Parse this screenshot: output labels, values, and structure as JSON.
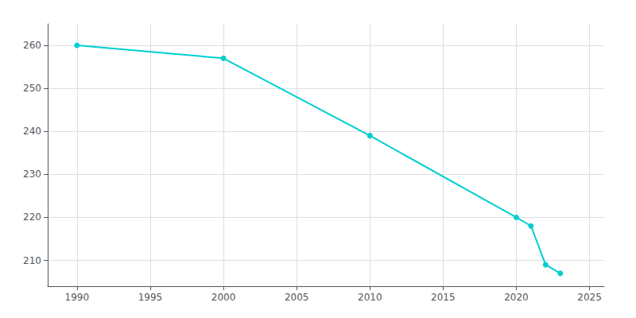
{
  "chart_data": {
    "type": "line",
    "x": [
      1990,
      2000,
      2010,
      2020,
      2021,
      2022,
      2023
    ],
    "values": [
      260,
      257,
      239,
      220,
      218,
      209,
      207
    ],
    "color": "#00CED1",
    "marker": "circle",
    "xlim": [
      1988,
      2026
    ],
    "ylim": [
      204,
      265
    ],
    "xticks": [
      1990,
      1995,
      2000,
      2005,
      2010,
      2015,
      2020,
      2025
    ],
    "yticks": [
      210,
      220,
      230,
      240,
      250,
      260
    ],
    "grid": true
  }
}
